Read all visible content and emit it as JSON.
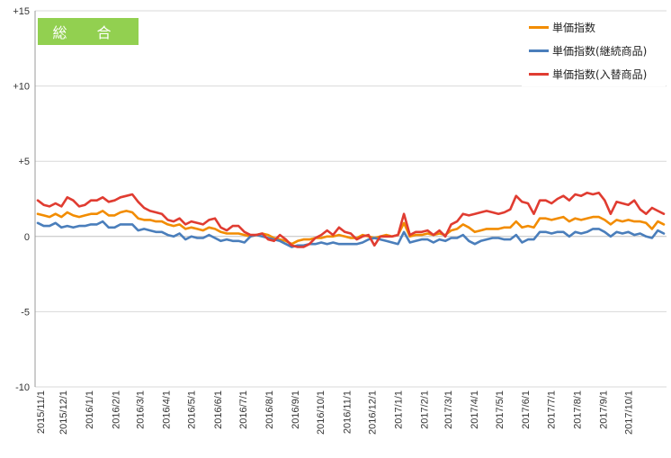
{
  "badge_text": "総 合",
  "chart_data": {
    "type": "line",
    "title": "",
    "xlabel": "",
    "ylabel": "",
    "ylim": [
      -10,
      15
    ],
    "yticks": [
      {
        "value": 15,
        "label": "+15"
      },
      {
        "value": 10,
        "label": "+10"
      },
      {
        "value": 5,
        "label": "+5"
      },
      {
        "value": 0,
        "label": "0"
      },
      {
        "value": -5,
        "label": "-5"
      },
      {
        "value": -10,
        "label": "-10"
      }
    ],
    "gridlines": "horizontal",
    "legend_position": "top-right",
    "x_start": "2015/11/1",
    "x_interval": "week",
    "xtick_labels": [
      "2015/11/1",
      "2015/12/1",
      "2016/1/1",
      "2016/2/1",
      "2016/3/1",
      "2016/4/1",
      "2016/5/1",
      "2016/6/1",
      "2016/7/1",
      "2016/8/1",
      "2016/9/1",
      "2016/10/1",
      "2016/11/1",
      "2016/12/1",
      "2017/1/1",
      "2017/2/1",
      "2017/3/1",
      "2017/4/1",
      "2017/5/1",
      "2017/6/1",
      "2017/7/1",
      "2017/8/1",
      "2017/9/1",
      "2017/10/1"
    ],
    "series": [
      {
        "name": "単価指数",
        "color": "#f28c00",
        "values": [
          1.5,
          1.4,
          1.3,
          1.5,
          1.3,
          1.6,
          1.4,
          1.3,
          1.4,
          1.5,
          1.5,
          1.7,
          1.4,
          1.4,
          1.6,
          1.7,
          1.6,
          1.2,
          1.1,
          1.1,
          1.0,
          1.0,
          0.8,
          0.7,
          0.8,
          0.5,
          0.6,
          0.5,
          0.4,
          0.6,
          0.5,
          0.3,
          0.2,
          0.2,
          0.2,
          0.1,
          0.0,
          0.1,
          0.2,
          0.1,
          -0.1,
          -0.2,
          -0.3,
          -0.5,
          -0.3,
          -0.2,
          -0.2,
          -0.1,
          -0.1,
          0.0,
          0.0,
          0.1,
          0.0,
          -0.1,
          -0.1,
          0.1,
          0.0,
          -0.1,
          0.0,
          0.1,
          0.0,
          0.1,
          0.9,
          0.0,
          0.1,
          0.1,
          0.2,
          0.1,
          0.2,
          0.1,
          0.4,
          0.5,
          0.8,
          0.6,
          0.3,
          0.4,
          0.5,
          0.5,
          0.5,
          0.6,
          0.6,
          1.0,
          0.6,
          0.7,
          0.6,
          1.2,
          1.2,
          1.1,
          1.2,
          1.3,
          1.0,
          1.2,
          1.1,
          1.2,
          1.3,
          1.3,
          1.1,
          0.8,
          1.1,
          1.0,
          1.1,
          1.0,
          1.0,
          0.9,
          0.5,
          1.0,
          0.8
        ]
      },
      {
        "name": "単価指数(継続商品)",
        "color": "#4a7ebb",
        "values": [
          0.9,
          0.7,
          0.7,
          0.9,
          0.6,
          0.7,
          0.6,
          0.7,
          0.7,
          0.8,
          0.8,
          1.0,
          0.6,
          0.6,
          0.8,
          0.8,
          0.8,
          0.4,
          0.5,
          0.4,
          0.3,
          0.3,
          0.1,
          0.0,
          0.2,
          -0.2,
          0.0,
          -0.1,
          -0.1,
          0.1,
          -0.1,
          -0.3,
          -0.2,
          -0.3,
          -0.3,
          -0.4,
          0.0,
          0.1,
          0.0,
          -0.1,
          -0.2,
          -0.3,
          -0.5,
          -0.7,
          -0.6,
          -0.6,
          -0.5,
          -0.5,
          -0.4,
          -0.5,
          -0.4,
          -0.5,
          -0.5,
          -0.5,
          -0.5,
          -0.4,
          -0.2,
          -0.1,
          -0.2,
          -0.3,
          -0.4,
          -0.5,
          0.3,
          -0.4,
          -0.3,
          -0.2,
          -0.2,
          -0.4,
          -0.2,
          -0.3,
          -0.1,
          -0.1,
          0.1,
          -0.3,
          -0.5,
          -0.3,
          -0.2,
          -0.1,
          -0.1,
          -0.2,
          -0.2,
          0.1,
          -0.4,
          -0.2,
          -0.2,
          0.3,
          0.3,
          0.2,
          0.3,
          0.3,
          0.0,
          0.3,
          0.2,
          0.3,
          0.5,
          0.5,
          0.3,
          0.0,
          0.3,
          0.2,
          0.3,
          0.1,
          0.2,
          0.0,
          -0.1,
          0.4,
          0.2
        ]
      },
      {
        "name": "単価指数(入替商品)",
        "color": "#e03c31",
        "values": [
          2.4,
          2.1,
          2.0,
          2.2,
          2.0,
          2.6,
          2.4,
          2.0,
          2.1,
          2.4,
          2.4,
          2.6,
          2.3,
          2.4,
          2.6,
          2.7,
          2.8,
          2.3,
          1.9,
          1.7,
          1.6,
          1.5,
          1.1,
          1.0,
          1.2,
          0.8,
          1.0,
          0.9,
          0.8,
          1.1,
          1.2,
          0.6,
          0.4,
          0.7,
          0.7,
          0.3,
          0.1,
          0.1,
          0.2,
          -0.2,
          -0.3,
          0.1,
          -0.2,
          -0.6,
          -0.7,
          -0.7,
          -0.5,
          -0.1,
          0.1,
          0.4,
          0.1,
          0.6,
          0.3,
          0.2,
          -0.2,
          0.0,
          0.1,
          -0.6,
          0.0,
          0.0,
          0.0,
          0.1,
          1.5,
          0.1,
          0.3,
          0.3,
          0.4,
          0.1,
          0.4,
          0.0,
          0.8,
          1.0,
          1.5,
          1.4,
          1.5,
          1.6,
          1.7,
          1.6,
          1.5,
          1.6,
          1.8,
          2.7,
          2.3,
          2.2,
          1.5,
          2.4,
          2.4,
          2.2,
          2.5,
          2.7,
          2.4,
          2.8,
          2.7,
          2.9,
          2.8,
          2.9,
          2.4,
          1.5,
          2.3,
          2.2,
          2.1,
          2.4,
          1.8,
          1.5,
          1.9,
          1.7,
          1.5
        ]
      }
    ]
  }
}
